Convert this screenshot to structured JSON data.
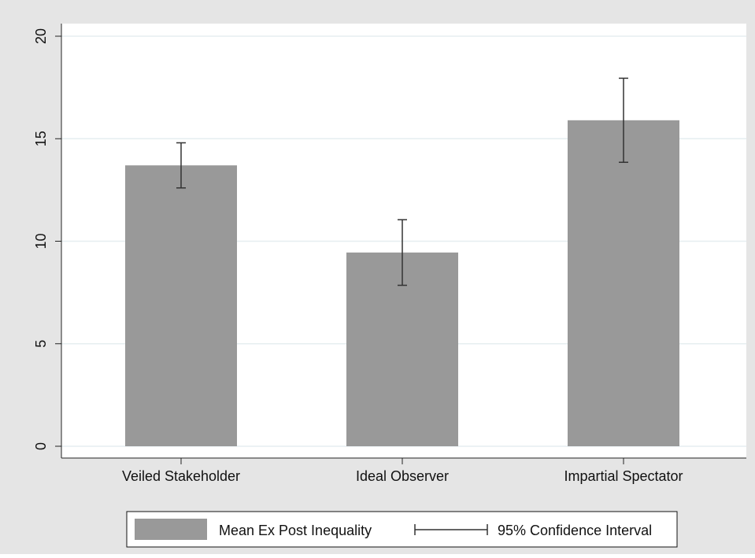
{
  "chart_data": {
    "type": "bar",
    "categories": [
      "Veiled Stakeholder",
      "Ideal Observer",
      "Impartial Spectator"
    ],
    "series": [
      {
        "name": "Mean Ex Post Inequality",
        "values": [
          13.7,
          9.45,
          15.9
        ],
        "ci_low": [
          12.6,
          7.85,
          13.85
        ],
        "ci_high": [
          14.8,
          11.05,
          17.95
        ]
      }
    ],
    "ylim": [
      0,
      20
    ],
    "yticks": [
      0,
      5,
      10,
      15,
      20
    ],
    "ytick_labels": [
      "0",
      "5",
      "10",
      "15",
      "20"
    ],
    "grid": true,
    "legend": {
      "placement": "bottom",
      "entries": [
        "Mean Ex Post Inequality",
        "95% Confidence Interval"
      ]
    },
    "colors": {
      "bar": "#999999",
      "error_bar": "#333333",
      "grid": "#e6eef0",
      "outer_background": "#e5e5e5",
      "plot_background": "#ffffff",
      "axis": "#222222"
    }
  }
}
